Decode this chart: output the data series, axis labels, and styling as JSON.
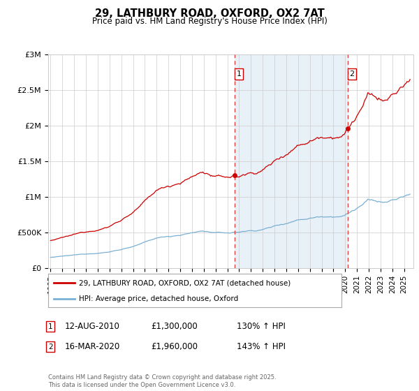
{
  "title": "29, LATHBURY ROAD, OXFORD, OX2 7AT",
  "subtitle": "Price paid vs. HM Land Registry's House Price Index (HPI)",
  "ylabel_ticks": [
    "£0",
    "£500K",
    "£1M",
    "£1.5M",
    "£2M",
    "£2.5M",
    "£3M"
  ],
  "ytick_values": [
    0,
    500000,
    1000000,
    1500000,
    2000000,
    2500000,
    3000000
  ],
  "ylim": [
    0,
    3000000
  ],
  "xlim_start": 1994.8,
  "xlim_end": 2025.8,
  "red_line_color": "#cc0000",
  "blue_line_color": "#7ab0d4",
  "blue_fill_color": "#e8f0f8",
  "dashed_line_color": "#dd4444",
  "background_color": "#ffffff",
  "grid_color": "#cccccc",
  "transaction1_date": 2010.62,
  "transaction1_price": 1300000,
  "transaction2_date": 2020.21,
  "transaction2_price": 1960000,
  "legend_red_label": "29, LATHBURY ROAD, OXFORD, OX2 7AT (detached house)",
  "legend_blue_label": "HPI: Average price, detached house, Oxford",
  "annotation1_num": "1",
  "annotation1_text": "12-AUG-2010",
  "annotation1_price": "£1,300,000",
  "annotation1_hpi": "130% ↑ HPI",
  "annotation2_num": "2",
  "annotation2_text": "16-MAR-2020",
  "annotation2_price": "£1,960,000",
  "annotation2_hpi": "143% ↑ HPI",
  "footer": "Contains HM Land Registry data © Crown copyright and database right 2025.\nThis data is licensed under the Open Government Licence v3.0.",
  "xtick_years": [
    1995,
    1996,
    1997,
    1998,
    1999,
    2000,
    2001,
    2002,
    2003,
    2004,
    2005,
    2006,
    2007,
    2008,
    2009,
    2010,
    2011,
    2012,
    2013,
    2014,
    2015,
    2016,
    2017,
    2018,
    2019,
    2020,
    2021,
    2022,
    2023,
    2024,
    2025
  ]
}
